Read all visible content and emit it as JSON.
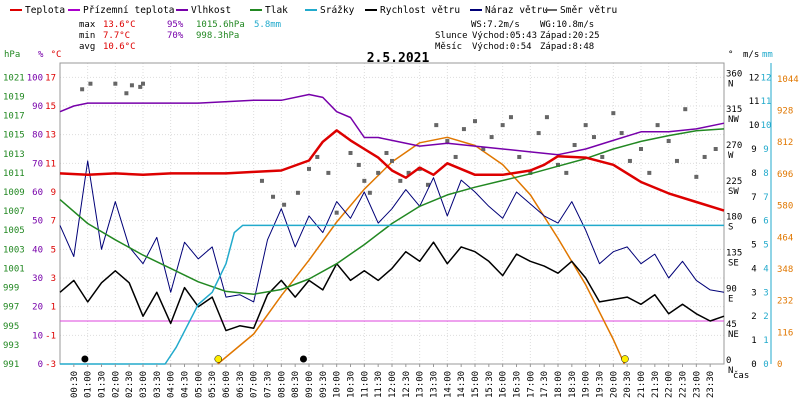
{
  "legend": [
    {
      "label": "Teplota",
      "color": "#dd0000"
    },
    {
      "label": "Přízemní teplota",
      "color": "#aa00cc"
    },
    {
      "label": "Vlhkost",
      "color": "#7700aa"
    },
    {
      "label": "Tlak",
      "color": "#228822"
    },
    {
      "label": "Srážky",
      "color": "#22aacc"
    },
    {
      "label": "Rychlost větru",
      "color": "#000000"
    },
    {
      "label": "Náraz větru",
      "color": "#000077"
    },
    {
      "label": "Směr větru",
      "color": "#666666"
    }
  ],
  "stats": {
    "max_label": "max",
    "max_temp": "13.6°C",
    "max_hum": "95%",
    "max_press": "1015.6hPa",
    "max_rain": "5.8mm",
    "min_label": "min",
    "min_temp": "7.7°C",
    "min_hum": "70%",
    "min_press": "998.3hPa",
    "avg_label": "avg",
    "avg_temp": "10.6°C"
  },
  "wind": {
    "ws": "WS:7.2m/s",
    "wg": "WG:10.8m/s"
  },
  "sun": {
    "label": "Slunce",
    "rise": "Východ:05:43",
    "set": "Západ:20:25"
  },
  "moon": {
    "label": "Měsíc",
    "rise": "Východ:0:54",
    "set": "Západ:8:48"
  },
  "colors": {
    "temp": "#dd0000",
    "hum": "#7700aa",
    "press": "#228822",
    "rain": "#22aacc",
    "wind": "#000000",
    "gust": "#000077",
    "dir": "#666666",
    "sun": "#e07700",
    "ground": "#dd44dd",
    "grid": "#dddddd"
  },
  "chart_data": {
    "type": "line",
    "title": "2.5.2021",
    "x_unit": "čas",
    "x_ticks": [
      "00:30",
      "01:00",
      "01:30",
      "02:00",
      "02:30",
      "03:00",
      "03:30",
      "04:00",
      "04:30",
      "05:00",
      "05:30",
      "06:00",
      "06:30",
      "07:00",
      "07:30",
      "08:00",
      "08:30",
      "09:00",
      "09:30",
      "10:00",
      "10:30",
      "11:00",
      "11:30",
      "12:00",
      "12:30",
      "13:00",
      "13:30",
      "14:00",
      "14:30",
      "15:00",
      "15:30",
      "16:00",
      "16:30",
      "17:00",
      "17:30",
      "18:00",
      "18:30",
      "19:00",
      "19:30",
      "20:00",
      "20:30",
      "21:00",
      "21:30",
      "22:00",
      "22:30",
      "23:00",
      "23:30"
    ],
    "axes": {
      "hpa": {
        "unit": "hPa",
        "ticks": [
          "991",
          "993",
          "995",
          "997",
          "999",
          "1001",
          "1003",
          "1005",
          "1007",
          "1009",
          "1011",
          "1013",
          "1015",
          "1017",
          "1019",
          "1021"
        ]
      },
      "pct": {
        "unit": "%",
        "ticks": [
          "0",
          "10",
          "20",
          "30",
          "40",
          "50",
          "60",
          "70",
          "80",
          "90",
          "100"
        ]
      },
      "degc": {
        "unit": "°C",
        "ticks": [
          "-3",
          "-1",
          "1",
          "3",
          "5",
          "7",
          "9",
          "11",
          "13",
          "15",
          "17"
        ]
      },
      "deg": {
        "unit": "°",
        "ticks": [
          {
            "v": "0",
            "d": "N"
          },
          {
            "v": "45",
            "d": "NE"
          },
          {
            "v": "90",
            "d": "E"
          },
          {
            "v": "135",
            "d": "SE"
          },
          {
            "v": "180",
            "d": "S"
          },
          {
            "v": "225",
            "d": "SW"
          },
          {
            "v": "270",
            "d": "W"
          },
          {
            "v": "315",
            "d": "NW"
          },
          {
            "v": "360",
            "d": "N"
          }
        ]
      },
      "ms": {
        "unit": "m/s",
        "ticks": [
          "0",
          "1",
          "2",
          "3",
          "4",
          "5",
          "6",
          "7",
          "8",
          "9",
          "10",
          "11",
          "12"
        ]
      },
      "mm": {
        "unit": "mm",
        "ticks": [
          "0",
          "1",
          "2",
          "3",
          "4",
          "5",
          "6",
          "7",
          "8",
          "9",
          "10",
          "11",
          "12"
        ]
      },
      "sun": {
        "unit": "",
        "ticks": [
          "0",
          "116",
          "232",
          "348",
          "464",
          "580",
          "696",
          "812",
          "928",
          "1044"
        ]
      }
    },
    "series": [
      {
        "name": "Teplota",
        "unit": "°C",
        "x": [
          0,
          1,
          2,
          3,
          4,
          5,
          6,
          7,
          8,
          9,
          9.5,
          10,
          10.5,
          11,
          11.5,
          12,
          12.5,
          13,
          13.5,
          14,
          15,
          16,
          17,
          17.5,
          18,
          19,
          20,
          21,
          22,
          23,
          24
        ],
        "y": [
          10.3,
          10.2,
          10.3,
          10.2,
          10.3,
          10.3,
          10.3,
          10.4,
          10.5,
          11.2,
          12.5,
          13.3,
          12.6,
          12,
          11.4,
          10.5,
          10.0,
          10.7,
          10.2,
          11,
          10.2,
          10.2,
          10.5,
          10.9,
          11.5,
          11.4,
          10.9,
          9.7,
          8.9,
          8.3,
          7.7
        ]
      },
      {
        "name": "Vlhkost",
        "unit": "%",
        "x": [
          0,
          0.5,
          1,
          3,
          5,
          7,
          8,
          9,
          9.5,
          10,
          10.5,
          11,
          11.5,
          12,
          13,
          14,
          15,
          16,
          17,
          18,
          19,
          20,
          21,
          22,
          23,
          24
        ],
        "y": [
          88,
          90,
          91,
          91,
          91,
          92,
          92,
          94,
          93,
          88,
          86,
          79,
          79,
          78,
          76,
          77,
          76,
          75,
          74,
          73,
          75,
          78,
          81,
          81,
          82,
          84
        ]
      },
      {
        "name": "Tlak",
        "unit": "hPa",
        "x": [
          0,
          1,
          2,
          3,
          4,
          5,
          6,
          7,
          8,
          9,
          10,
          11,
          12,
          13,
          14,
          15,
          16,
          17,
          18,
          19,
          20,
          21,
          22,
          23,
          24
        ],
        "y": [
          1008.2,
          1005.7,
          1004.0,
          1002.4,
          1001.0,
          999.6,
          998.6,
          998.3,
          998.8,
          999.9,
          1001.5,
          1003.5,
          1005.7,
          1007.5,
          1008.7,
          1009.5,
          1010.2,
          1010.9,
          1011.7,
          1012.5,
          1013.5,
          1014.3,
          1014.9,
          1015.4,
          1015.6
        ]
      },
      {
        "name": "Srážky",
        "unit": "mm",
        "x": [
          0,
          3.8,
          4.2,
          5,
          5.5,
          6,
          6.3,
          6.6,
          24
        ],
        "y": [
          0,
          0,
          0.7,
          2.5,
          3,
          4.2,
          5.5,
          5.8,
          5.8
        ]
      },
      {
        "name": "Sluneční záření",
        "unit": "W/m2",
        "x": [
          5.7,
          7,
          8,
          9,
          10,
          11,
          12,
          13,
          14,
          15,
          16,
          17,
          18,
          19,
          20,
          20.4
        ],
        "y": [
          0,
          110,
          250,
          380,
          520,
          640,
          740,
          810,
          830,
          800,
          730,
          620,
          460,
          290,
          90,
          0
        ]
      }
    ],
    "wind_speed": {
      "unit": "m/s",
      "x": [
        0,
        0.5,
        1,
        1.5,
        2,
        2.5,
        3,
        3.5,
        4,
        4.5,
        5,
        5.5,
        6,
        6.5,
        7,
        7.5,
        8,
        8.5,
        9,
        9.5,
        10,
        10.5,
        11,
        11.5,
        12,
        12.5,
        13,
        13.5,
        14,
        14.5,
        15,
        15.5,
        16,
        16.5,
        17,
        17.5,
        18,
        18.5,
        19,
        19.5,
        20,
        20.5,
        21,
        21.5,
        22,
        22.5,
        23,
        23.5,
        24
      ],
      "y": [
        3.0,
        3.5,
        2.6,
        3.4,
        3.9,
        3.4,
        2.0,
        3.0,
        1.7,
        3.2,
        2.4,
        2.8,
        1.4,
        1.6,
        1.5,
        2.9,
        3.5,
        2.8,
        3.5,
        3.1,
        4.2,
        3.5,
        3.9,
        3.5,
        4.0,
        4.7,
        4.3,
        5.1,
        4.2,
        4.9,
        4.7,
        4.3,
        3.7,
        4.6,
        4.3,
        4.1,
        3.8,
        4.3,
        3.6,
        2.6,
        2.7,
        2.8,
        2.5,
        2.9,
        2.1,
        2.5,
        2.1,
        1.8,
        2.0
      ]
    },
    "wind_gust": {
      "unit": "m/s",
      "x": [
        0,
        0.5,
        1,
        1.5,
        2,
        2.5,
        3,
        3.5,
        4,
        4.5,
        5,
        5.5,
        6,
        6.5,
        7,
        7.5,
        8,
        8.5,
        9,
        9.5,
        10,
        10.5,
        11,
        11.5,
        12,
        12.5,
        13,
        13.5,
        14,
        14.5,
        15,
        15.5,
        16,
        16.5,
        17,
        17.5,
        18,
        18.5,
        19,
        19.5,
        20,
        20.5,
        21,
        21.5,
        22,
        22.5,
        23,
        23.5,
        24
      ],
      "y": [
        5.8,
        4.5,
        8.5,
        4.8,
        6.8,
        4.9,
        4.2,
        5.3,
        3.0,
        5.1,
        4.4,
        4.9,
        2.8,
        2.9,
        2.6,
        5.2,
        6.5,
        4.9,
        6.2,
        5.5,
        6.8,
        6.1,
        7.2,
        5.9,
        6.5,
        7.3,
        6.6,
        7.8,
        6.2,
        7.7,
        7.2,
        6.6,
        6.1,
        7.2,
        6.7,
        6.2,
        5.9,
        6.8,
        5.6,
        4.2,
        4.7,
        4.9,
        4.2,
        4.6,
        3.6,
        4.3,
        3.5,
        3.1,
        3.0
      ]
    },
    "wind_dir": {
      "unit": "°",
      "x": [
        0.8,
        1.1,
        2.0,
        2.4,
        2.6,
        2.9,
        3.0,
        7.3,
        7.7,
        8.1,
        8.6,
        9.0,
        9.3,
        9.7,
        10.0,
        10.5,
        10.8,
        11.0,
        11.2,
        11.5,
        11.8,
        12.0,
        12.3,
        12.6,
        13.0,
        13.3,
        13.6,
        14.0,
        14.3,
        14.6,
        15.0,
        15.3,
        15.6,
        16.0,
        16.3,
        16.6,
        17.0,
        17.3,
        17.6,
        18.0,
        18.3,
        18.6,
        19.0,
        19.3,
        19.6,
        20.0,
        20.3,
        20.6,
        21.0,
        21.3,
        21.6,
        22.0,
        22.3,
        22.6,
        23.0,
        23.3,
        23.7
      ],
      "y": [
        345,
        352,
        352,
        340,
        350,
        348,
        352,
        230,
        210,
        200,
        215,
        245,
        260,
        240,
        190,
        265,
        250,
        230,
        215,
        240,
        265,
        255,
        230,
        240,
        245,
        225,
        300,
        280,
        260,
        295,
        305,
        270,
        285,
        300,
        310,
        260,
        240,
        290,
        310,
        250,
        240,
        275,
        300,
        285,
        260,
        315,
        290,
        255,
        270,
        240,
        300,
        280,
        255,
        320,
        235,
        260,
        270
      ]
    }
  }
}
